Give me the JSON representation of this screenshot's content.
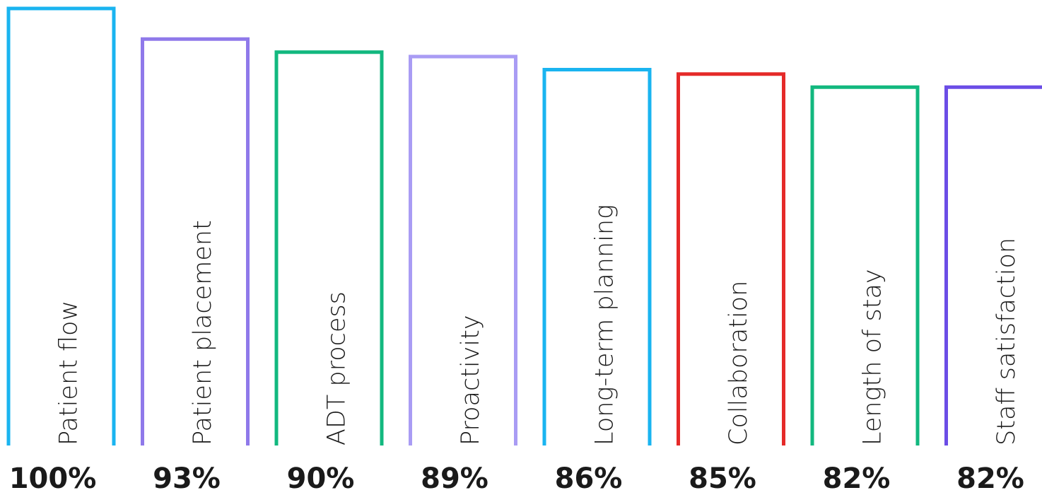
{
  "chart_data": {
    "type": "bar",
    "categories": [
      "Patient flow",
      "Patient placement",
      "ADT process",
      "Proactivity",
      "Long-term planning",
      "Collaboration",
      "Length of stay",
      "Staff satisfaction"
    ],
    "values": [
      100,
      93,
      90,
      89,
      86,
      85,
      82,
      82
    ],
    "value_labels": [
      "100%",
      "93%",
      "90%",
      "89%",
      "86%",
      "85%",
      "82%",
      "82%"
    ],
    "colors": [
      "#1ab4f0",
      "#8f79ea",
      "#12b87f",
      "#a99cf4",
      "#1ab4f0",
      "#e52a29",
      "#12b87f",
      "#6b4de6"
    ],
    "title": "",
    "xlabel": "",
    "ylabel": "",
    "ylim": [
      0,
      100
    ],
    "grid": false,
    "legend": "none"
  }
}
